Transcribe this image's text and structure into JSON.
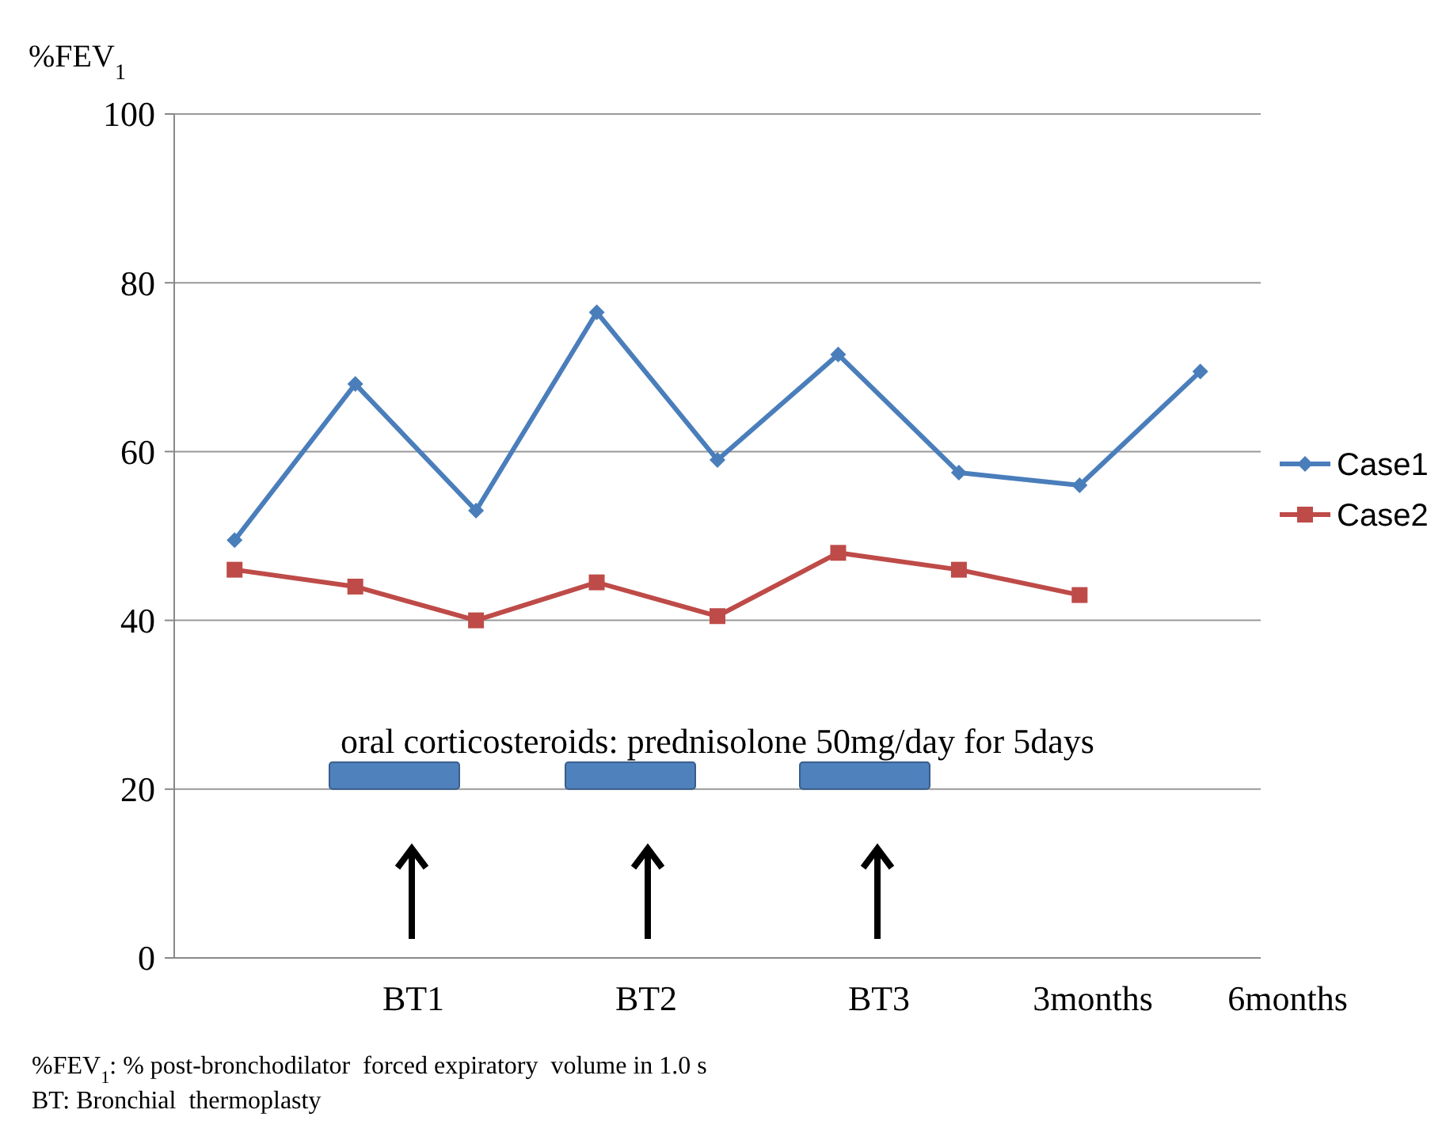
{
  "chart_data": {
    "type": "line",
    "ylabel": "%FEV$_{1}$",
    "categories": [
      null,
      null,
      null,
      null,
      null,
      null,
      null,
      null,
      null
    ],
    "series": [
      {
        "name": "Case1",
        "color": "#4a7ebb",
        "marker": "diamond",
        "values": [
          49.5,
          68,
          53,
          76.5,
          59,
          71.5,
          57.5,
          56,
          69.5
        ]
      },
      {
        "name": "Case2",
        "color": "#be4b48",
        "marker": "square",
        "values": [
          46,
          44,
          40,
          44.5,
          40.5,
          48,
          46,
          43,
          null
        ]
      }
    ],
    "ylim": [
      0,
      100
    ],
    "yticks": [
      0,
      20,
      40,
      60,
      80,
      100
    ],
    "grid": "y",
    "legend": "right",
    "annotations": [
      "oral corticosteroids: prednisolone 50mg/day for 5days",
      "BT1",
      "BT2",
      "BT3",
      "3months",
      "6months",
      "%FEV$_{1}$: % post-bronchodilator  forced expiratory  volume in 1.0 s",
      "BT: Bronchial  thermoplasty"
    ]
  }
}
